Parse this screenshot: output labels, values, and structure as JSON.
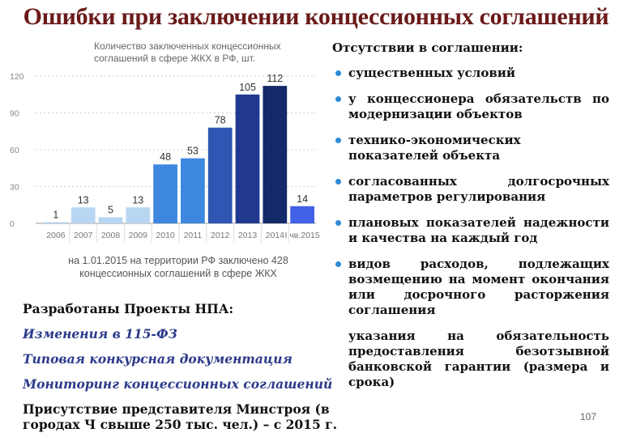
{
  "slide": {
    "title": "Ошибки при заключении концессионных соглашений",
    "page_number": "107"
  },
  "chart_data": {
    "type": "bar",
    "title": "Количество заключенных концессионных соглашений в сфере ЖКХ в РФ, шт.",
    "categories": [
      "2006",
      "2007",
      "2008",
      "2009",
      "2010",
      "2011",
      "2012",
      "2013",
      "2014",
      "I чв.2015"
    ],
    "values": [
      1,
      13,
      5,
      13,
      48,
      53,
      78,
      105,
      112,
      14
    ],
    "value_labels": [
      "1",
      "13",
      "5",
      "13",
      "48",
      "53",
      "78",
      "105",
      "112",
      "14"
    ],
    "y_ticks": [
      "0",
      "30",
      "60",
      "90",
      "120"
    ],
    "ylim": [
      0,
      120
    ],
    "bar_colors": [
      "#b8d6f2",
      "#b8d6f2",
      "#b8d6f2",
      "#b8d6f2",
      "#3e87e0",
      "#3e87e0",
      "#2f56b3",
      "#21388f",
      "#142968",
      "#4361e6"
    ],
    "footnote": "на 1.01.2015 на территории РФ заключено 428 концессионных соглашений в сфере ЖКХ"
  },
  "right_panel": {
    "heading": "Отсутствии в соглашении:",
    "bullets": [
      "существенных условий",
      "у концессионера обязательств по модернизации объектов",
      "технико-экономических показателей объекта",
      "согласованных долгосрочных параметров регулирования",
      "плановых показателей надежности и качества на каждый год",
      "видов расходов, подлежащих возмещению на момент окончания или досрочного расторжения соглашения"
    ],
    "continuation": "указания на обязательность предоставления безотзывной банковской гарантии (размера и срока)"
  },
  "left_notes": {
    "developed": "Разработаны Проекты НПА:",
    "change": "Изменения в 115-ФЗ",
    "tender": "Типовая конкурсная документация",
    "monitoring": "Мониторинг концессионных соглашений",
    "presence": "Присутствие представителя Минстроя (в городах Ч свыше 250 тыс. чел.) – с 2015 г."
  }
}
